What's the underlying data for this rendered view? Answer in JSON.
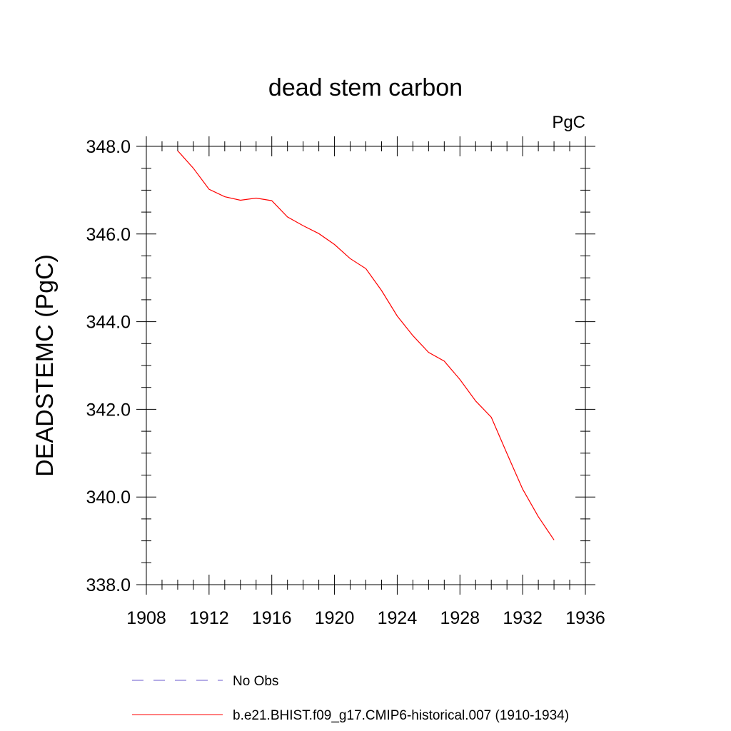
{
  "chart_data": {
    "type": "line",
    "title": "dead stem carbon",
    "units": "PgC",
    "ylabel": "DEADSTEMC  (PgC)",
    "xlabel": "",
    "xlim": [
      1908,
      1936
    ],
    "ylim": [
      338.0,
      348.0
    ],
    "x_ticks": [
      1908,
      1912,
      1916,
      1920,
      1924,
      1928,
      1932,
      1936
    ],
    "x_tick_labels": [
      "1908",
      "1912",
      "1916",
      "1920",
      "1924",
      "1928",
      "1932",
      "1936"
    ],
    "y_ticks": [
      338.0,
      340.0,
      342.0,
      344.0,
      346.0,
      348.0
    ],
    "y_tick_labels": [
      "338.0",
      "340.0",
      "342.0",
      "344.0",
      "346.0",
      "348.0"
    ],
    "grid": false,
    "legend_position": "bottom",
    "series": [
      {
        "name": "No Obs",
        "color": "#6a5acd",
        "style": "dashed",
        "x": [],
        "y": []
      },
      {
        "name": "b.e21.BHIST.f09_g17.CMIP6-historical.007 (1910-1934)",
        "color": "#ff0000",
        "style": "solid",
        "x": [
          1910,
          1911,
          1912,
          1913,
          1914,
          1915,
          1916,
          1917,
          1918,
          1919,
          1920,
          1921,
          1922,
          1923,
          1924,
          1925,
          1926,
          1927,
          1928,
          1929,
          1930,
          1931,
          1932,
          1933,
          1934
        ],
        "y": [
          347.9,
          347.5,
          347.02,
          346.85,
          346.77,
          346.82,
          346.76,
          346.39,
          346.19,
          346.01,
          345.76,
          345.44,
          345.21,
          344.71,
          344.13,
          343.68,
          343.3,
          343.1,
          342.68,
          342.19,
          341.82,
          340.99,
          340.18,
          339.55,
          339.02
        ]
      }
    ]
  }
}
